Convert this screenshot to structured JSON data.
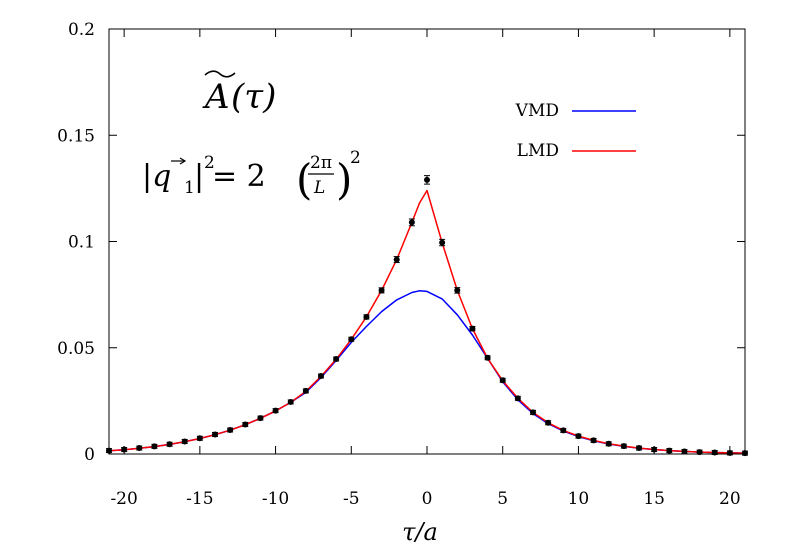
{
  "chart_data": {
    "type": "line",
    "xlabel": "τ/a",
    "ylabel": "",
    "xlim": [
      -21,
      21
    ],
    "ylim": [
      0,
      0.2
    ],
    "xticks": [
      -20,
      -15,
      -10,
      -5,
      0,
      5,
      10,
      15,
      20
    ],
    "xtick_labels": [
      "-20",
      "-15",
      "-10",
      "-5",
      "0",
      "5",
      "10",
      "15",
      "20"
    ],
    "yticks": [
      0,
      0.05,
      0.1,
      0.15,
      0.2
    ],
    "ytick_labels": [
      "0",
      "0.05",
      "0.1",
      "0.15",
      "0.2"
    ],
    "grid": false,
    "legend_position": "top-right",
    "annotations": {
      "title_main": "A",
      "title_arg": "(τ)",
      "momentum_lhs": "|q",
      "momentum_sub": "1",
      "momentum_exp": "2",
      "momentum_eq": " = 2",
      "frac_num": "2π",
      "frac_den": "L",
      "outer_exp": "2"
    },
    "series": [
      {
        "name": "VMD",
        "color": "#0000ff",
        "x": [
          -21,
          -20,
          -19,
          -18,
          -17,
          -16,
          -15,
          -14,
          -13,
          -12,
          -11,
          -10,
          -9,
          -8,
          -7,
          -6,
          -5,
          -4,
          -3,
          -2,
          -1,
          -0.5,
          0,
          1,
          2,
          3,
          4,
          5,
          6,
          7,
          8,
          9,
          10,
          11,
          12,
          13,
          14,
          15,
          16,
          17,
          18,
          19,
          20,
          21
        ],
        "y": [
          0.0015,
          0.002,
          0.0027,
          0.0035,
          0.0045,
          0.0058,
          0.0073,
          0.0091,
          0.0112,
          0.0138,
          0.0168,
          0.0203,
          0.0243,
          0.029,
          0.036,
          0.044,
          0.0525,
          0.06,
          0.067,
          0.0725,
          0.076,
          0.0768,
          0.0765,
          0.073,
          0.0655,
          0.056,
          0.045,
          0.034,
          0.0255,
          0.019,
          0.0143,
          0.0108,
          0.0082,
          0.0062,
          0.0047,
          0.0036,
          0.0027,
          0.0021,
          0.0016,
          0.0012,
          0.0009,
          0.0007,
          0.0005,
          0.0004
        ]
      },
      {
        "name": "LMD",
        "color": "#ff0000",
        "x": [
          -21,
          -20,
          -19,
          -18,
          -17,
          -16,
          -15,
          -14,
          -13,
          -12,
          -11,
          -10,
          -9,
          -8,
          -7,
          -6,
          -5,
          -4,
          -3,
          -2,
          -1,
          -0.5,
          0,
          1,
          2,
          3,
          4,
          5,
          6,
          7,
          8,
          9,
          10,
          11,
          12,
          13,
          14,
          15,
          16,
          17,
          18,
          19,
          20,
          21
        ],
        "y": [
          0.0015,
          0.002,
          0.0027,
          0.0035,
          0.0045,
          0.0058,
          0.0073,
          0.0091,
          0.0112,
          0.0138,
          0.0168,
          0.0203,
          0.0243,
          0.0295,
          0.0365,
          0.0445,
          0.054,
          0.0645,
          0.077,
          0.0915,
          0.109,
          0.118,
          0.124,
          0.0995,
          0.077,
          0.059,
          0.045,
          0.0345,
          0.0262,
          0.0196,
          0.0147,
          0.0111,
          0.0084,
          0.0064,
          0.0048,
          0.0037,
          0.0028,
          0.0021,
          0.0016,
          0.0012,
          0.0009,
          0.0007,
          0.0005,
          0.0004
        ]
      },
      {
        "name": "",
        "type": "scatter",
        "color": "#000000",
        "x": [
          -21,
          -20,
          -19,
          -18,
          -17,
          -16,
          -15,
          -14,
          -13,
          -12,
          -11,
          -10,
          -9,
          -8,
          -7,
          -6,
          -5,
          -4,
          -3,
          -2,
          -1,
          0,
          1,
          2,
          3,
          4,
          5,
          6,
          7,
          8,
          9,
          10,
          11,
          12,
          13,
          14,
          15,
          16,
          17,
          18,
          19,
          20,
          21
        ],
        "y": [
          0.0016,
          0.0021,
          0.0028,
          0.0036,
          0.0046,
          0.0059,
          0.0074,
          0.0092,
          0.0113,
          0.0139,
          0.0169,
          0.0204,
          0.0245,
          0.0297,
          0.0367,
          0.0447,
          0.054,
          0.0645,
          0.077,
          0.0915,
          0.109,
          0.129,
          0.0995,
          0.077,
          0.059,
          0.0453,
          0.0347,
          0.0262,
          0.0196,
          0.0147,
          0.0111,
          0.0084,
          0.0064,
          0.0048,
          0.0037,
          0.0028,
          0.0021,
          0.0016,
          0.0012,
          0.0009,
          0.0007,
          0.0005,
          0.0004
        ],
        "err": [
          0.0002,
          0.0002,
          0.0002,
          0.0002,
          0.0002,
          0.0002,
          0.0003,
          0.0003,
          0.0003,
          0.0004,
          0.0004,
          0.0004,
          0.0005,
          0.0005,
          0.0006,
          0.0007,
          0.0008,
          0.001,
          0.0012,
          0.0014,
          0.0016,
          0.002,
          0.0015,
          0.0013,
          0.001,
          0.0008,
          0.0007,
          0.0006,
          0.0005,
          0.0004,
          0.0004,
          0.0003,
          0.0003,
          0.0003,
          0.0002,
          0.0002,
          0.0002,
          0.0002,
          0.0002,
          0.0002,
          0.0002,
          0.0002,
          0.0002
        ]
      }
    ]
  }
}
